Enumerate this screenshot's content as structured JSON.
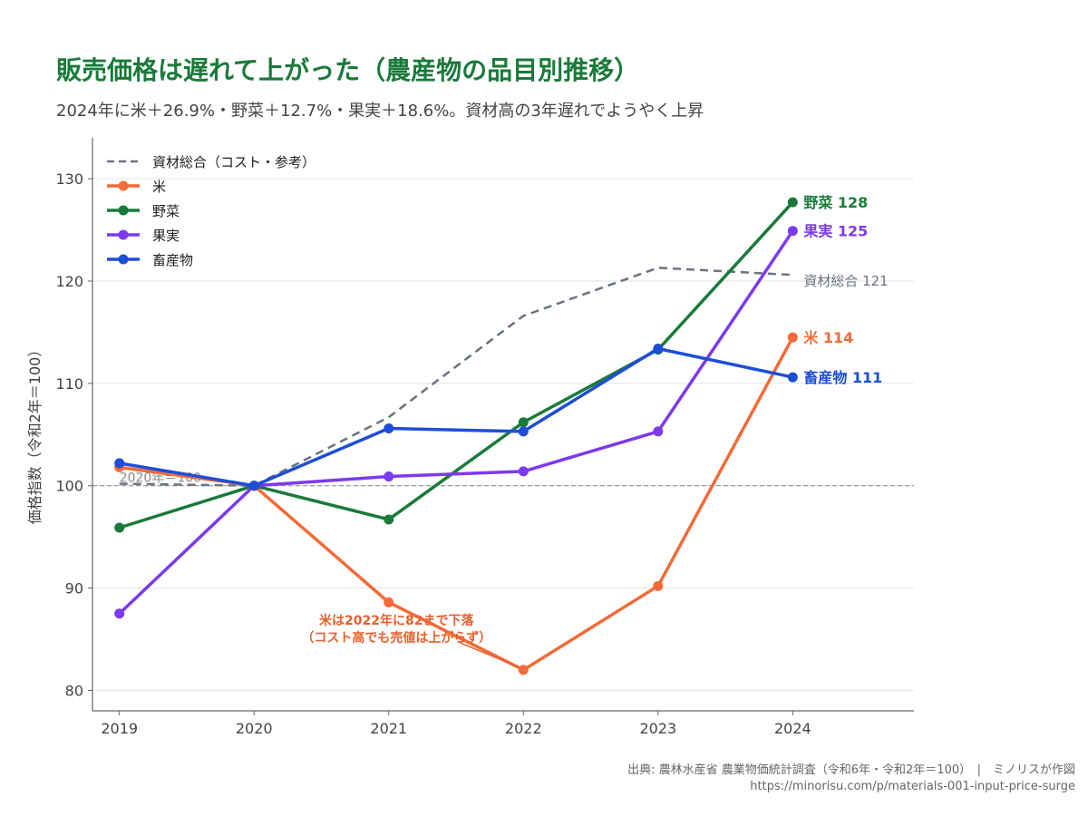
{
  "title": "販売価格は遅れて上がった（農産物の品目別推移）",
  "subtitle": "2024年に米＋26.9%・野菜＋12.7%・果実＋18.6%。資材高の3年遅れでようやく上昇",
  "source": "出典: 農林水産省 農業物価統計調査（令和6年・令和2年＝100）　|　ミノリスが作図",
  "url": "https://minorisu.com/p/materials-001-input-price-surge",
  "chart_data": {
    "type": "line",
    "x": [
      2019,
      2020,
      2021,
      2022,
      2023,
      2024
    ],
    "xlim": [
      2018.8,
      2024.9
    ],
    "ylim": [
      78,
      134
    ],
    "yticks": [
      80,
      90,
      100,
      110,
      120,
      130
    ],
    "ylabel": "価格指数（令和2年＝100）",
    "xlabel": "",
    "grid": true,
    "legend_position": "top-left",
    "reference_line": {
      "value": 100,
      "label": "2020年＝100"
    },
    "series": [
      {
        "name": "資材総合（コスト・参考）",
        "values": [
          100.2,
          100,
          106.7,
          116.6,
          121.3,
          120.6
        ],
        "color": "#6b7280",
        "dashed": true,
        "end_label": "資材総合 121"
      },
      {
        "name": "米",
        "values": [
          101.8,
          100,
          88.6,
          82.0,
          90.2,
          114.5
        ],
        "color": "#f26b38",
        "dashed": false,
        "end_label": "米 114"
      },
      {
        "name": "野菜",
        "values": [
          95.9,
          100,
          96.7,
          106.2,
          113.3,
          127.7
        ],
        "color": "#1a7a3a",
        "dashed": false,
        "end_label": "野菜 128"
      },
      {
        "name": "果実",
        "values": [
          87.5,
          100,
          100.9,
          101.4,
          105.3,
          124.9
        ],
        "color": "#7c3aed",
        "dashed": false,
        "end_label": "果実 125"
      },
      {
        "name": "畜産物",
        "values": [
          102.2,
          100,
          105.6,
          105.3,
          113.4,
          110.6
        ],
        "color": "#1d4ed8",
        "dashed": false,
        "end_label": "畜産物 111"
      }
    ],
    "annotation": {
      "lines": [
        "米は2022年に82まで下落",
        "（コスト高でも売値は上がらず）"
      ],
      "target_x": 2022,
      "target_y": 82.0,
      "color": "#e8602c"
    }
  }
}
